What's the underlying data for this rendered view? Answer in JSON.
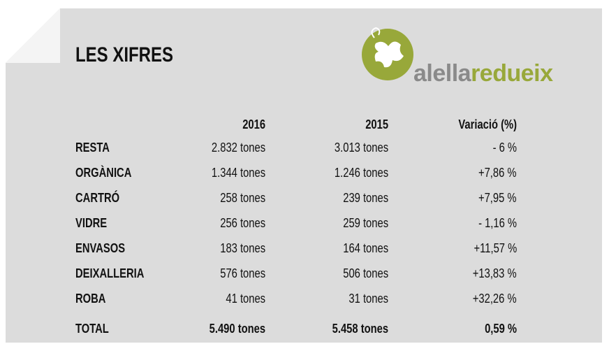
{
  "header": {
    "title": "LES XIFRES",
    "logo": {
      "part1": "alella",
      "part2": "redueix"
    }
  },
  "table": {
    "columns": [
      "2016",
      "2015",
      "Variació (%)"
    ],
    "rows": [
      [
        "RESTA",
        "2.832 tones",
        "3.013 tones",
        "- 6 %"
      ],
      [
        "ORGÀNICA",
        "1.344 tones",
        "1.246 tones",
        "+7,86 %"
      ],
      [
        "CARTRÓ",
        "258 tones",
        "239 tones",
        "+7,95 %"
      ],
      [
        "VIDRE",
        "256 tones",
        "259 tones",
        "- 1,16 %"
      ],
      [
        "ENVASOS",
        "183 tones",
        "164 tones",
        "+11,57 %"
      ],
      [
        "DEIXALLERIA",
        "576 tones",
        "506 tones",
        "+13,83 %"
      ],
      [
        "ROBA",
        "41 tones",
        "31 tones",
        "+32,26 %"
      ]
    ],
    "total": [
      "TOTAL",
      "5.490 tones",
      "5.458 tones",
      "0,59 %"
    ]
  }
}
